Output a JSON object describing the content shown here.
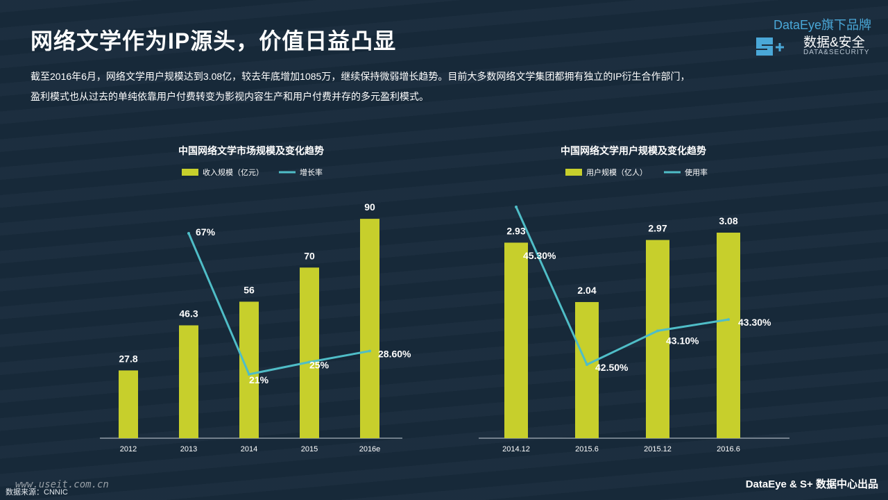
{
  "header": {
    "title": "网络文学作为IP源头，价值日益凸显",
    "brand_line": "DataEye旗下品牌",
    "brand_cn": "数据&安全",
    "brand_en": "DATA&SECURITY"
  },
  "description": {
    "line1": "截至2016年6月，网络文学用户规模达到3.08亿，较去年底增加1085万，继续保持微弱增长趋势。目前大多数网络文学集团都拥有独立的IP衍生合作部门，",
    "line2": "盈利模式也从过去的单纯依靠用户付费转变为影视内容生产和用户付费并存的多元盈利模式。"
  },
  "footer": {
    "source": "数据来源：CNNIC",
    "watermark": "www.useit.com.cn",
    "brand": "DataEye & S+ 数据中心出品"
  },
  "colors": {
    "background": "#182a3b",
    "bar": "#c7cf2c",
    "line": "#4fbdc7",
    "accent_text": "#4aa8d8"
  },
  "chart_data": [
    {
      "type": "bar",
      "title": "中国网络文学市场规模及变化趋势",
      "categories": [
        "2012",
        "2013",
        "2014",
        "2015",
        "2016e"
      ],
      "series": [
        {
          "name": "收入规模（亿元）",
          "kind": "bar",
          "values": [
            27.8,
            46.3,
            56,
            70,
            90
          ],
          "labels": [
            "27.8",
            "46.3",
            "56",
            "70",
            "90"
          ]
        },
        {
          "name": "增长率",
          "kind": "line",
          "values": [
            null,
            67,
            21,
            25,
            28.6
          ],
          "labels": [
            "",
            "67%",
            "21%",
            "25%",
            "28.60%"
          ]
        }
      ],
      "legend_position": "top-center",
      "grid": false
    },
    {
      "type": "bar",
      "title": "中国网络文学用户规模及变化趋势",
      "categories": [
        "2014.12",
        "2015.6",
        "2015.12",
        "2016.6"
      ],
      "series": [
        {
          "name": "用户规模（亿人）",
          "kind": "bar",
          "values": [
            2.93,
            2.04,
            2.97,
            3.08
          ],
          "labels": [
            "2.93",
            "2.04",
            "2.97",
            "3.08"
          ]
        },
        {
          "name": "使用率",
          "kind": "line",
          "values": [
            45.3,
            42.5,
            43.1,
            43.3
          ],
          "labels": [
            "45.30%",
            "42.50%",
            "43.10%",
            "43.30%"
          ]
        }
      ],
      "legend_position": "top-center",
      "grid": false
    }
  ]
}
